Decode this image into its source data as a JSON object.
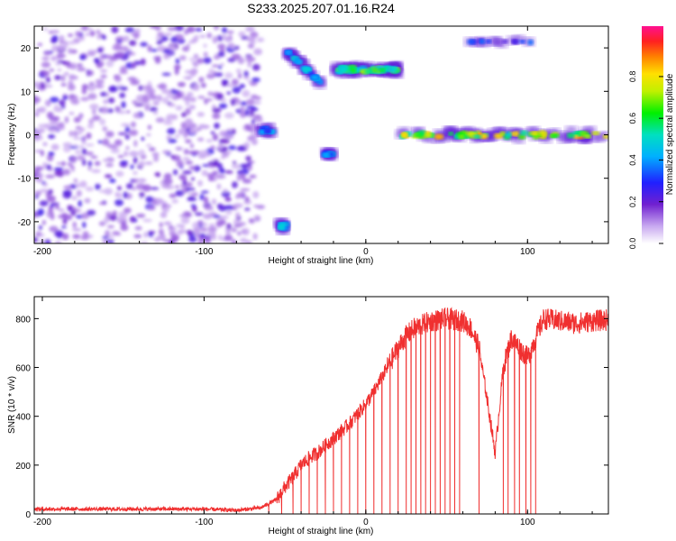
{
  "title": "S233.2025.207.01.16.R24",
  "colors": {
    "snr_line": "#f03030",
    "spectro_low": "#d8c8f0",
    "spectro_mid": "#7030d8"
  },
  "chart_data": [
    {
      "type": "heatmap",
      "name": "spectrogram",
      "xlabel": "Height of straight line (km)",
      "ylabel": "Frequency (Hz)",
      "xlim": [
        -205,
        150
      ],
      "ylim": [
        -25,
        25
      ],
      "xticks": [
        -200,
        -100,
        0,
        100
      ],
      "yticks": [
        -20,
        -10,
        0,
        10,
        20
      ],
      "grid": false,
      "colorbar": {
        "label": "Normalized spectral amplitude",
        "range": [
          0,
          1
        ],
        "ticks": [
          "0.0",
          "0.2",
          "0.4",
          "0.6",
          "0.8"
        ],
        "colormap": "rainbow (white/violet to red/pink)"
      },
      "features": [
        {
          "desc": "diffuse noise",
          "x": [
            -205,
            -65
          ],
          "y": [
            -25,
            25
          ],
          "amplitude": 0.1
        },
        {
          "desc": "blob",
          "x": [
            -65,
            -58
          ],
          "y": [
            0,
            2
          ],
          "amplitude": 0.45
        },
        {
          "desc": "blob",
          "x": [
            -53,
            -49
          ],
          "y": [
            -22,
            -20
          ],
          "amplitude": 0.55
        },
        {
          "desc": "streak",
          "x": [
            -48,
            -28
          ],
          "y": [
            12,
            19
          ],
          "amplitude": 0.5
        },
        {
          "desc": "blob",
          "x": [
            -25,
            -21
          ],
          "y": [
            -5,
            -4
          ],
          "amplitude": 0.45
        },
        {
          "desc": "band",
          "x": [
            -19,
            20
          ],
          "y": [
            14,
            16
          ],
          "amplitude": 0.7
        },
        {
          "desc": "band",
          "x": [
            20,
            150
          ],
          "y": [
            -1,
            1
          ],
          "amplitude": 0.85
        },
        {
          "desc": "blobs",
          "x": [
            62,
            104
          ],
          "y": [
            21,
            22
          ],
          "amplitude": 0.35
        }
      ]
    },
    {
      "type": "line",
      "name": "snr",
      "xlabel": "Height of straight line (km)",
      "ylabel": "SNR (10 * v/v)",
      "xlim": [
        -205,
        150
      ],
      "ylim": [
        0,
        890
      ],
      "xticks": [
        -200,
        -100,
        0,
        100
      ],
      "yticks": [
        0,
        200,
        400,
        600,
        800
      ],
      "grid": false,
      "x": [
        -205,
        -150,
        -100,
        -80,
        -65,
        -55,
        -50,
        -45,
        -40,
        -35,
        -30,
        -25,
        -20,
        -15,
        -10,
        -5,
        0,
        5,
        10,
        15,
        20,
        25,
        30,
        40,
        50,
        60,
        65,
        70,
        75,
        80,
        85,
        90,
        95,
        100,
        110,
        120,
        130,
        140,
        150
      ],
      "values": [
        20,
        20,
        20,
        15,
        25,
        60,
        110,
        150,
        200,
        230,
        250,
        280,
        310,
        340,
        370,
        410,
        450,
        500,
        560,
        620,
        680,
        730,
        760,
        790,
        800,
        790,
        760,
        680,
        470,
        250,
        600,
        720,
        680,
        640,
        800,
        790,
        780,
        790,
        795
      ],
      "dropouts": [
        -60,
        -52,
        -45,
        -40,
        -35,
        -30,
        -25,
        -20,
        -15,
        -10,
        -5,
        0,
        5,
        10,
        15,
        20,
        25,
        28,
        31,
        34,
        37,
        40,
        43,
        46,
        49,
        52,
        55,
        58,
        70,
        85,
        88,
        92,
        95,
        99,
        102,
        105
      ]
    }
  ]
}
